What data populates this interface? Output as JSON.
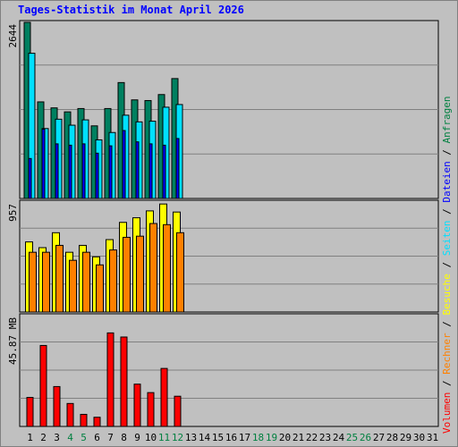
{
  "title": "Tages-Statistik im Monat April 2026",
  "legend": [
    {
      "label": "Volumen",
      "color": "#ff0000"
    },
    {
      "label": "Rechner",
      "color": "#ff8000"
    },
    {
      "label": "Besuche",
      "color": "#ffff00"
    },
    {
      "label": "Seiten",
      "color": "#00e0ff"
    },
    {
      "label": "Dateien",
      "color": "#0000ff"
    },
    {
      "label": "Anfragen",
      "color": "#008040"
    }
  ],
  "legend_separator": " / ",
  "colors": {
    "background": "#c0c0c0",
    "plot_bg": "#c0c0c0",
    "grid": "#808080",
    "title": "#0000ff",
    "weekend_label": "#008040",
    "day_label": "#000000",
    "anfragen": "#008060",
    "seiten": "#00e0ff",
    "dateien": "#0000ff",
    "besuche": "#ffff00",
    "rechner": "#ff8000",
    "volumen": "#ff0000"
  },
  "chart_data": {
    "type": "bar",
    "title": "Tages-Statistik im Monat April 2026",
    "x": [
      "1",
      "2",
      "3",
      "4",
      "5",
      "6",
      "7",
      "8",
      "9",
      "10",
      "11",
      "12",
      "13",
      "14",
      "15",
      "16",
      "17",
      "18",
      "19",
      "20",
      "21",
      "22",
      "23",
      "24",
      "25",
      "26",
      "27",
      "28",
      "29",
      "30",
      "31"
    ],
    "weekend_days": [
      "4",
      "5",
      "11",
      "12",
      "18",
      "19",
      "25",
      "26"
    ],
    "grid": true,
    "panels": [
      {
        "id": "hits",
        "ymax_label": "2644",
        "ymax": 2644,
        "series": [
          {
            "name": "Anfragen",
            "values": [
              2644,
              1450,
              1360,
              1300,
              1350,
              1090,
              1350,
              1740,
              1480,
              1470,
              1560,
              1800,
              0,
              0,
              0,
              0,
              0,
              0,
              0,
              0,
              0,
              0,
              0,
              0,
              0,
              0,
              0,
              0,
              0,
              0,
              0
            ]
          },
          {
            "name": "Seiten",
            "values": [
              2180,
              1050,
              1190,
              1100,
              1180,
              880,
              990,
              1250,
              1150,
              1160,
              1370,
              1410,
              0,
              0,
              0,
              0,
              0,
              0,
              0,
              0,
              0,
              0,
              0,
              0,
              0,
              0,
              0,
              0,
              0,
              0,
              0
            ]
          },
          {
            "name": "Dateien",
            "values": [
              600,
              1040,
              820,
              800,
              820,
              680,
              790,
              1020,
              850,
              820,
              800,
              900,
              0,
              0,
              0,
              0,
              0,
              0,
              0,
              0,
              0,
              0,
              0,
              0,
              0,
              0,
              0,
              0,
              0,
              0,
              0
            ]
          }
        ]
      },
      {
        "id": "visits",
        "ymax_label": "957",
        "ymax": 957,
        "series": [
          {
            "name": "Besuche",
            "values": [
              610,
              560,
              690,
              520,
              580,
              480,
              630,
              780,
              820,
              880,
              940,
              870,
              0,
              0,
              0,
              0,
              0,
              0,
              0,
              0,
              0,
              0,
              0,
              0,
              0,
              0,
              0,
              0,
              0,
              0,
              0
            ]
          },
          {
            "name": "Rechner",
            "values": [
              520,
              520,
              580,
              450,
              520,
              410,
              540,
              650,
              660,
              770,
              760,
              690,
              0,
              0,
              0,
              0,
              0,
              0,
              0,
              0,
              0,
              0,
              0,
              0,
              0,
              0,
              0,
              0,
              0,
              0,
              0
            ]
          }
        ]
      },
      {
        "id": "volume",
        "ymax_label": "45.87 MB",
        "ymax": 45.87,
        "series": [
          {
            "name": "Volumen",
            "values": [
              12.0,
              33.5,
              16.5,
              9.5,
              5.0,
              3.8,
              38.7,
              37.0,
              17.5,
              14.0,
              24.0,
              12.5,
              0,
              0,
              0,
              0,
              0,
              0,
              0,
              0,
              0,
              0,
              0,
              0,
              0,
              0,
              0,
              0,
              0,
              0,
              0
            ]
          }
        ]
      }
    ]
  }
}
